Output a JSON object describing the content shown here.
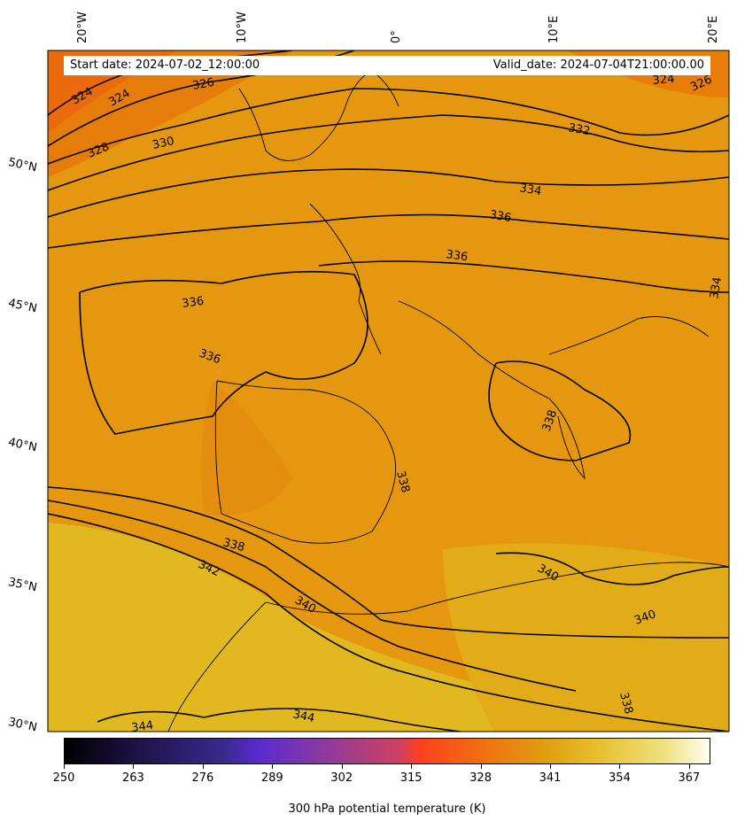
{
  "header": {
    "start_date": "Start date: 2024-07-02_12:00:00",
    "valid_date": "Valid_date: 2024-07-04T21:00:00.00"
  },
  "lon_labels": [
    "20°W",
    "10°W",
    "0°",
    "10°E",
    "20°E"
  ],
  "lat_labels": [
    "50°N",
    "45°N",
    "40°N",
    "35°N",
    "30°N"
  ],
  "contour_labels": [
    "324",
    "324",
    "326",
    "328",
    "330",
    "332",
    "334",
    "336",
    "336",
    "336",
    "336",
    "334",
    "338",
    "338",
    "338",
    "342",
    "340",
    "340",
    "340",
    "338",
    "344",
    "344",
    "324",
    "326"
  ],
  "colorbar": {
    "title": "300 hPa potential temperature (K)",
    "ticks": [
      "250",
      "263",
      "276",
      "289",
      "302",
      "315",
      "328",
      "341",
      "354",
      "367"
    ],
    "range": [
      250,
      371
    ]
  },
  "colors": {
    "warm_orange": "#e88a10",
    "mid_orange": "#e39a15",
    "gold": "#e3b820",
    "contour": "#000000"
  }
}
